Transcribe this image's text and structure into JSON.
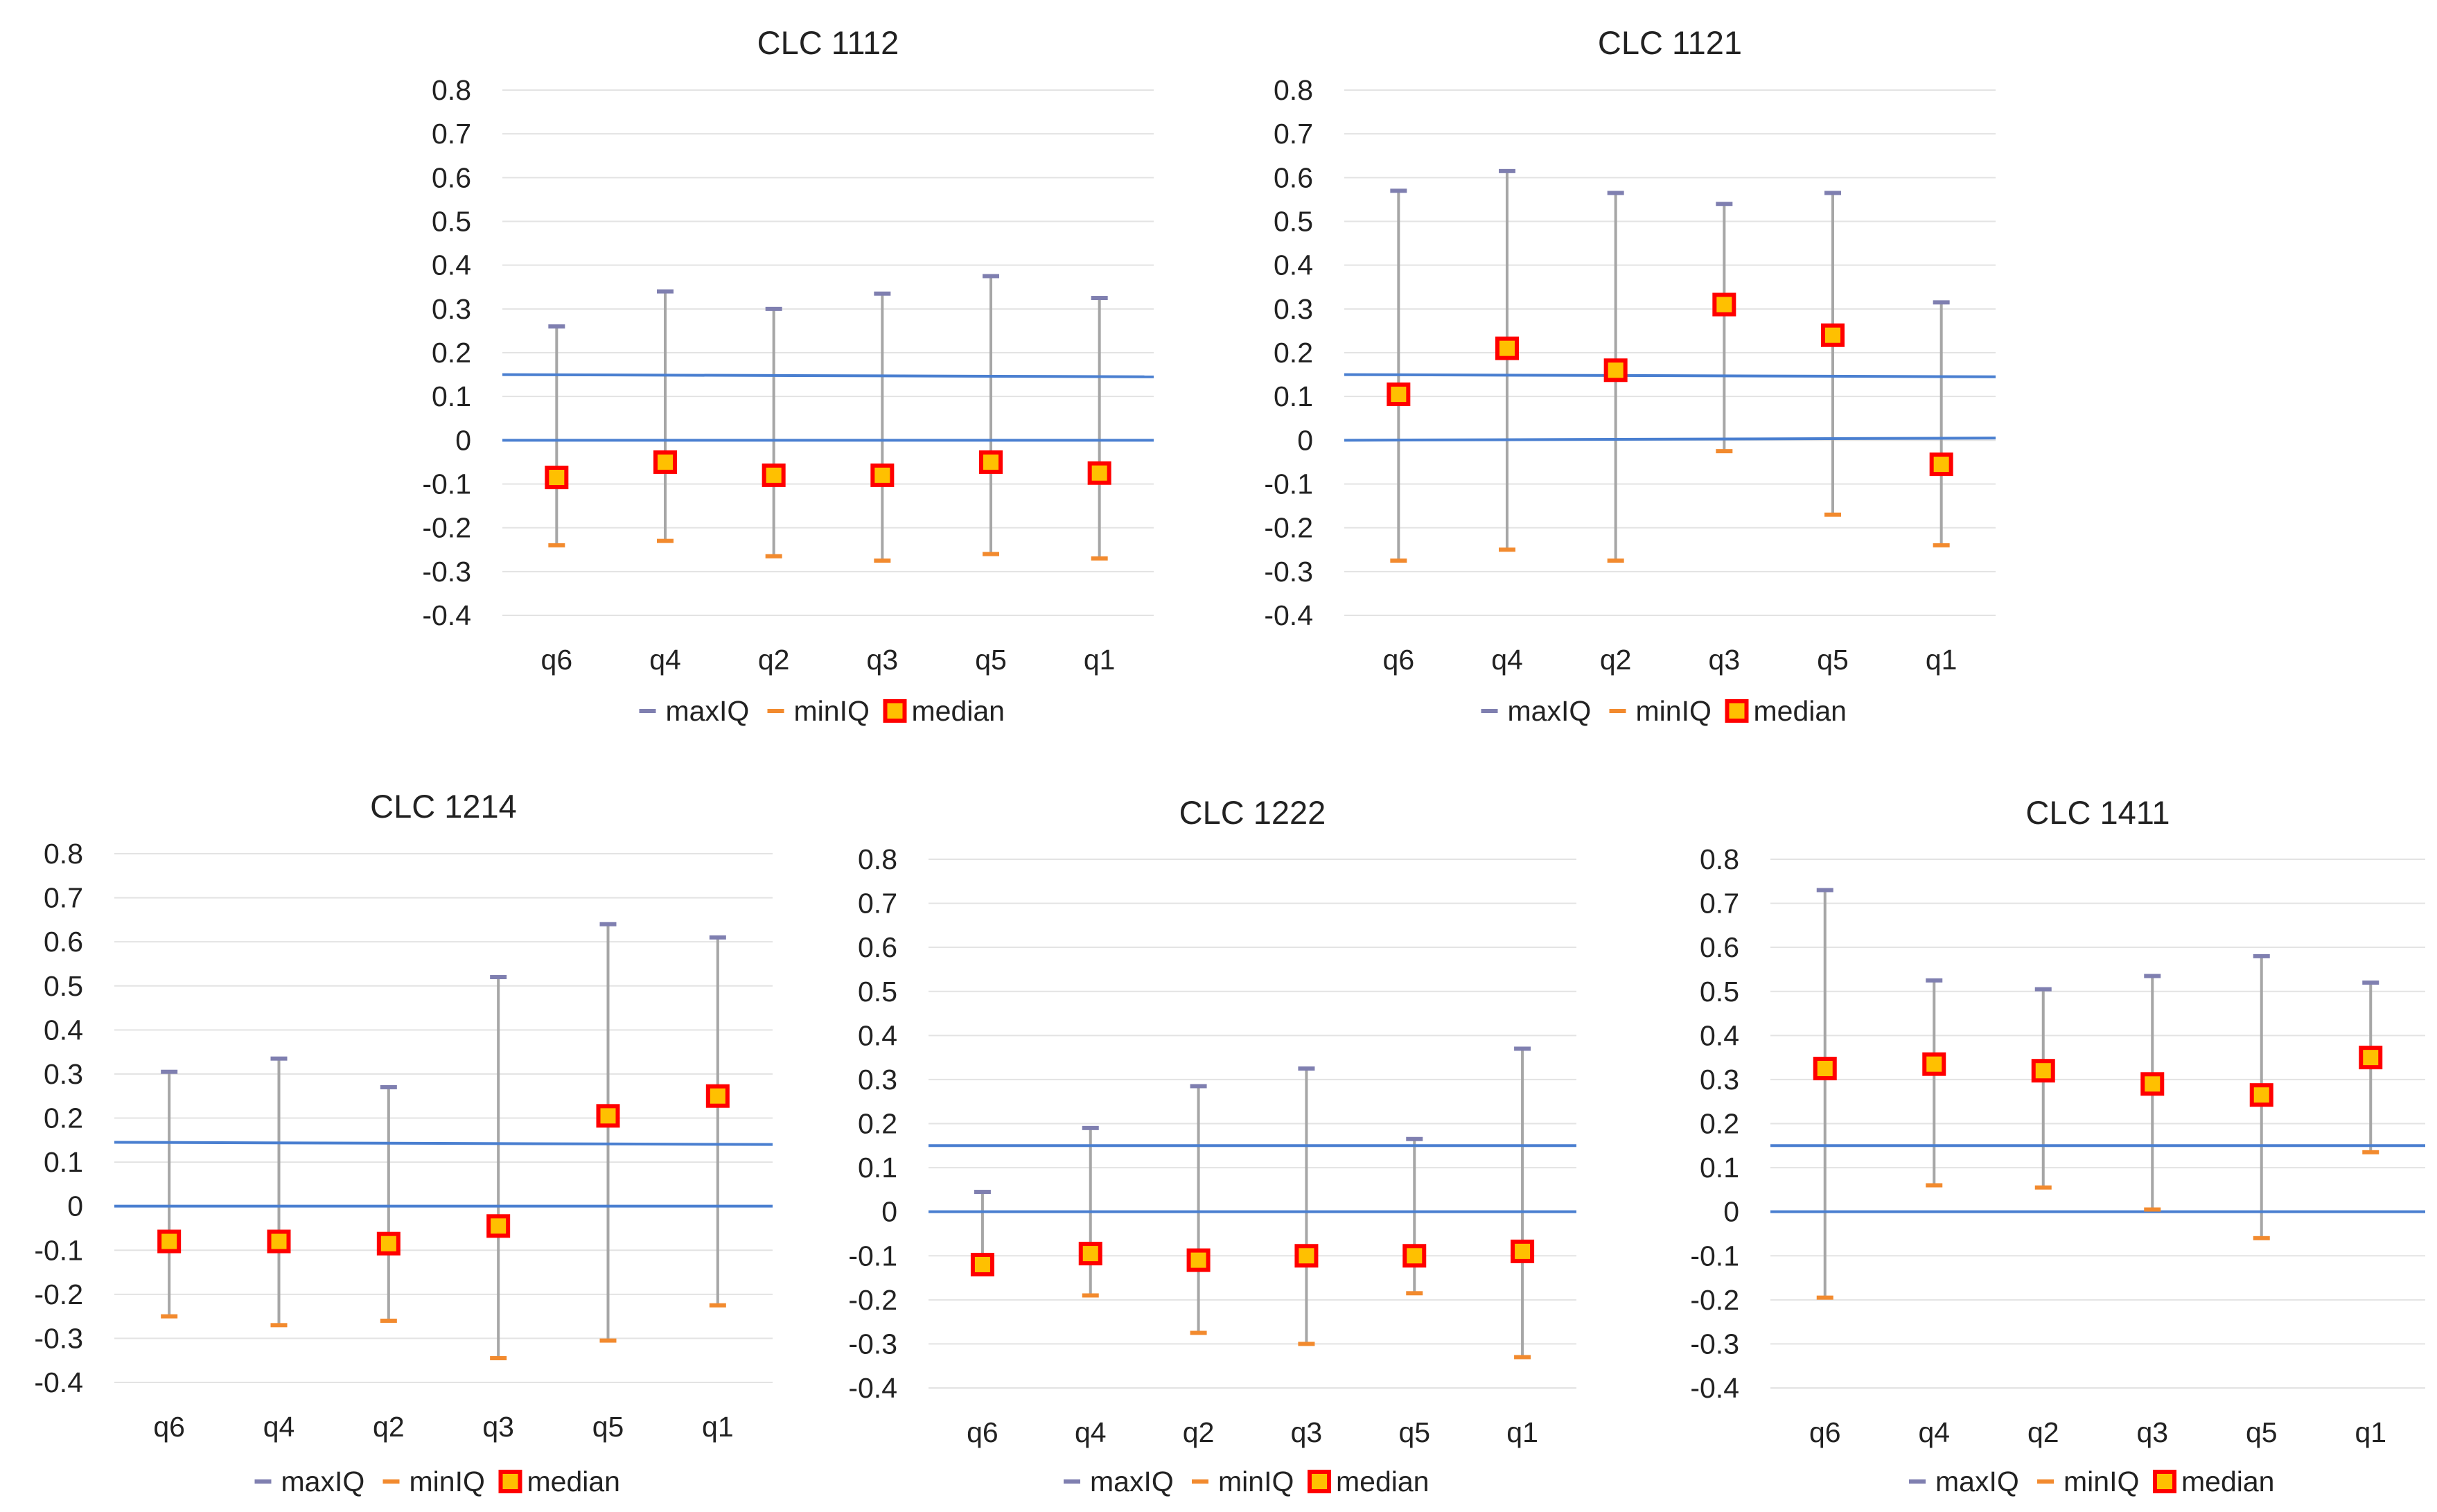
{
  "colors": {
    "maxIQ": "#7f7fb0",
    "minIQ": "#f28a2e",
    "median_fill": "#ffc000",
    "median_stroke": "#ff0000",
    "whisker": "#a6a6a6",
    "reference_line": "#4a7fd0"
  },
  "chart_data": [
    {
      "type": "scatter",
      "title": "CLC 1112",
      "categories": [
        "q6",
        "q4",
        "q2",
        "q3",
        "q5",
        "q1"
      ],
      "ylim": [
        -0.4,
        0.8
      ],
      "yticks": [
        "0.8",
        "0.7",
        "0.6",
        "0.5",
        "0.4",
        "0.3",
        "0.2",
        "0.1",
        "0",
        "-0.1",
        "-0.2",
        "-0.3",
        "-0.4"
      ],
      "legend": [
        "maxIQ",
        "minIQ",
        "median"
      ],
      "series": [
        {
          "name": "maxIQ",
          "values": [
            0.26,
            0.34,
            0.3,
            0.335,
            0.375,
            0.325
          ]
        },
        {
          "name": "minIQ",
          "values": [
            -0.24,
            -0.23,
            -0.265,
            -0.275,
            -0.26,
            -0.27
          ]
        },
        {
          "name": "median",
          "values": [
            -0.085,
            -0.05,
            -0.08,
            -0.08,
            -0.05,
            -0.075
          ]
        }
      ],
      "reference_lines": [
        {
          "start": 0.15,
          "end": 0.145
        },
        {
          "start": 0.0,
          "end": 0.0
        }
      ]
    },
    {
      "type": "scatter",
      "title": "CLC 1121",
      "categories": [
        "q6",
        "q4",
        "q2",
        "q3",
        "q5",
        "q1"
      ],
      "ylim": [
        -0.4,
        0.8
      ],
      "yticks": [
        "0.8",
        "0.7",
        "0.6",
        "0.5",
        "0.4",
        "0.3",
        "0.2",
        "0.1",
        "0",
        "-0.1",
        "-0.2",
        "-0.3",
        "-0.4"
      ],
      "legend": [
        "maxIQ",
        "minIQ",
        "median"
      ],
      "series": [
        {
          "name": "maxIQ",
          "values": [
            0.57,
            0.615,
            0.565,
            0.54,
            0.565,
            0.315
          ]
        },
        {
          "name": "minIQ",
          "values": [
            -0.275,
            -0.25,
            -0.275,
            -0.025,
            -0.17,
            -0.24
          ]
        },
        {
          "name": "median",
          "values": [
            0.105,
            0.21,
            0.16,
            0.31,
            0.24,
            -0.055
          ]
        }
      ],
      "reference_lines": [
        {
          "start": 0.15,
          "end": 0.145
        },
        {
          "start": 0.0,
          "end": 0.005
        }
      ]
    },
    {
      "type": "scatter",
      "title": "CLC 1214",
      "categories": [
        "q6",
        "q4",
        "q2",
        "q3",
        "q5",
        "q1"
      ],
      "ylim": [
        -0.4,
        0.8
      ],
      "yticks": [
        "0.8",
        "0.7",
        "0.6",
        "0.5",
        "0.4",
        "0.3",
        "0.2",
        "0.1",
        "0",
        "-0.1",
        "-0.2",
        "-0.3",
        "-0.4"
      ],
      "legend": [
        "maxIQ",
        "minIQ",
        "median"
      ],
      "series": [
        {
          "name": "maxIQ",
          "values": [
            0.305,
            0.335,
            0.27,
            0.52,
            0.64,
            0.61
          ]
        },
        {
          "name": "minIQ",
          "values": [
            -0.25,
            -0.27,
            -0.26,
            -0.345,
            -0.305,
            -0.225
          ]
        },
        {
          "name": "median",
          "values": [
            -0.08,
            -0.08,
            -0.085,
            -0.045,
            0.205,
            0.25
          ]
        }
      ],
      "reference_lines": [
        {
          "start": 0.145,
          "end": 0.14
        },
        {
          "start": 0.0,
          "end": 0.0
        }
      ]
    },
    {
      "type": "scatter",
      "title": "CLC 1222",
      "categories": [
        "q6",
        "q4",
        "q2",
        "q3",
        "q5",
        "q1"
      ],
      "ylim": [
        -0.4,
        0.8
      ],
      "yticks": [
        "0.8",
        "0.7",
        "0.6",
        "0.5",
        "0.4",
        "0.3",
        "0.2",
        "0.1",
        "0",
        "-0.1",
        "-0.2",
        "-0.3",
        "-0.4"
      ],
      "legend": [
        "maxIQ",
        "minIQ",
        "median"
      ],
      "series": [
        {
          "name": "maxIQ",
          "values": [
            0.045,
            0.19,
            0.285,
            0.325,
            0.165,
            0.37
          ]
        },
        {
          "name": "minIQ",
          "values": [
            -0.12,
            -0.19,
            -0.275,
            -0.3,
            -0.185,
            -0.33
          ]
        },
        {
          "name": "median",
          "values": [
            -0.12,
            -0.095,
            -0.11,
            -0.1,
            -0.1,
            -0.09
          ]
        }
      ],
      "reference_lines": [
        {
          "start": 0.15,
          "end": 0.15
        },
        {
          "start": 0.0,
          "end": 0.0
        }
      ]
    },
    {
      "type": "scatter",
      "title": "CLC 1411",
      "categories": [
        "q6",
        "q4",
        "q2",
        "q3",
        "q5",
        "q1"
      ],
      "ylim": [
        -0.4,
        0.8
      ],
      "yticks": [
        "0.8",
        "0.7",
        "0.6",
        "0.5",
        "0.4",
        "0.3",
        "0.2",
        "0.1",
        "0",
        "-0.1",
        "-0.2",
        "-0.3",
        "-0.4"
      ],
      "legend": [
        "maxIQ",
        "minIQ",
        "median"
      ],
      "series": [
        {
          "name": "maxIQ",
          "values": [
            0.73,
            0.525,
            0.505,
            0.535,
            0.58,
            0.52
          ]
        },
        {
          "name": "minIQ",
          "values": [
            -0.195,
            0.06,
            0.055,
            0.005,
            -0.06,
            0.135
          ]
        },
        {
          "name": "median",
          "values": [
            0.325,
            0.335,
            0.32,
            0.29,
            0.265,
            0.35
          ]
        }
      ],
      "reference_lines": [
        {
          "start": 0.15,
          "end": 0.15
        },
        {
          "start": 0.0,
          "end": 0.0
        }
      ]
    }
  ]
}
